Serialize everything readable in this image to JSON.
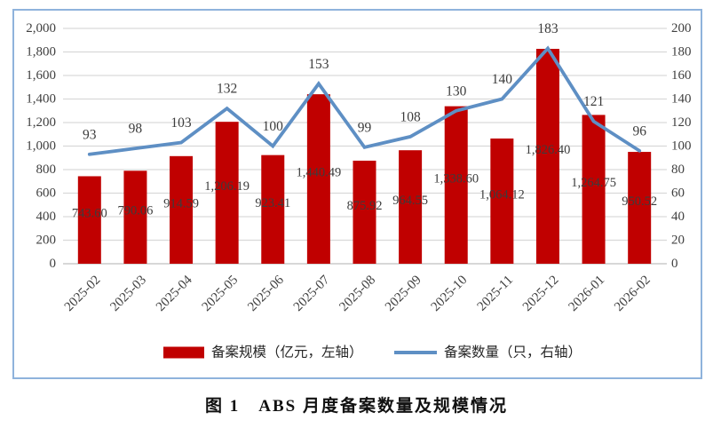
{
  "figure": {
    "caption": "图 1　ABS 月度备案数量及规模情况"
  },
  "chart_data": {
    "type": "bar+line",
    "categories": [
      "2025-02",
      "2025-03",
      "2025-04",
      "2025-05",
      "2025-06",
      "2025-07",
      "2025-08",
      "2025-09",
      "2025-10",
      "2025-11",
      "2025-12",
      "2026-01",
      "2026-02"
    ],
    "series": [
      {
        "name": "备案规模（亿元，左轴）",
        "type": "bar",
        "axis": "left",
        "values": [
          743.6,
          790.06,
          914.59,
          1206.19,
          923.41,
          1440.49,
          875.92,
          964.55,
          1338.6,
          1064.12,
          1826.4,
          1264.75,
          950.52
        ],
        "labels": [
          "743.60",
          "790.06",
          "914.59",
          "1,206.19",
          "923.41",
          "1,440.49",
          "875.92",
          "964.55",
          "1,338.60",
          "1,064.12",
          "1,826.40",
          "1,264.75",
          "950.52"
        ]
      },
      {
        "name": "备案数量（只，右轴）",
        "type": "line",
        "axis": "right",
        "values": [
          93,
          98,
          103,
          132,
          100,
          153,
          99,
          108,
          130,
          140,
          183,
          121,
          96
        ],
        "labels": [
          "93",
          "98",
          "103",
          "132",
          "100",
          "153",
          "99",
          "108",
          "130",
          "140",
          "183",
          "121",
          "96"
        ]
      }
    ],
    "left_axis": {
      "min": 0,
      "max": 2000,
      "step": 200,
      "tick_labels": [
        "0",
        "200",
        "400",
        "600",
        "800",
        "1,000",
        "1,200",
        "1,400",
        "1,600",
        "1,800",
        "2,000"
      ]
    },
    "right_axis": {
      "min": 0,
      "max": 200,
      "step": 20,
      "tick_labels": [
        "0",
        "20",
        "40",
        "60",
        "80",
        "100",
        "120",
        "140",
        "160",
        "180",
        "200"
      ]
    },
    "legend": {
      "position": "bottom",
      "entries": [
        {
          "swatch": "bar",
          "label": "备案规模（亿元，左轴）"
        },
        {
          "swatch": "line",
          "label": "备案数量（只，右轴）"
        }
      ]
    },
    "grid": true,
    "colors": {
      "bar": "#C00000",
      "line": "#5E8FC4",
      "grid": "#D9D9D9",
      "zero_line": "#BFBFBF",
      "text": "#404040",
      "frame": "#8FB3DC"
    }
  }
}
